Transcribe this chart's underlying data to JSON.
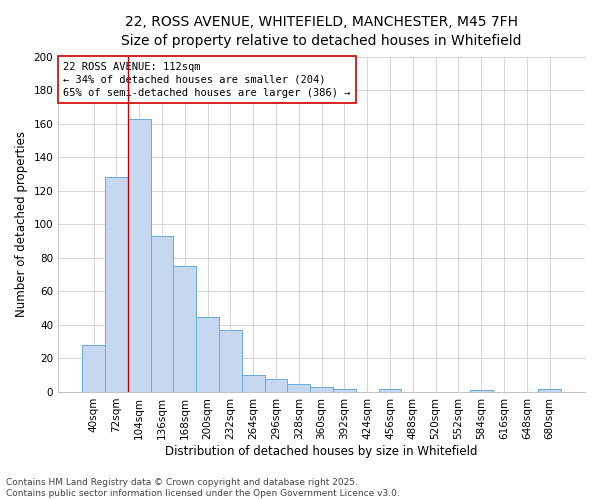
{
  "title_line1": "22, ROSS AVENUE, WHITEFIELD, MANCHESTER, M45 7FH",
  "title_line2": "Size of property relative to detached houses in Whitefield",
  "xlabel": "Distribution of detached houses by size in Whitefield",
  "ylabel": "Number of detached properties",
  "annotation_title": "22 ROSS AVENUE: 112sqm",
  "annotation_line2": "← 34% of detached houses are smaller (204)",
  "annotation_line3": "65% of semi-detached houses are larger (386) →",
  "footer_line1": "Contains HM Land Registry data © Crown copyright and database right 2025.",
  "footer_line2": "Contains public sector information licensed under the Open Government Licence v3.0.",
  "bin_labels": [
    "40sqm",
    "72sqm",
    "104sqm",
    "136sqm",
    "168sqm",
    "200sqm",
    "232sqm",
    "264sqm",
    "296sqm",
    "328sqm",
    "360sqm",
    "392sqm",
    "424sqm",
    "456sqm",
    "488sqm",
    "520sqm",
    "552sqm",
    "584sqm",
    "616sqm",
    "648sqm",
    "680sqm"
  ],
  "bar_values": [
    28,
    128,
    163,
    93,
    75,
    45,
    37,
    10,
    8,
    5,
    3,
    2,
    0,
    2,
    0,
    0,
    0,
    1,
    0,
    0,
    2
  ],
  "bar_color": "#c5d8f0",
  "bar_edge_color": "#6aaad4",
  "vline_color": "#cc0000",
  "annotation_box_color": "#cc0000",
  "ylim": [
    0,
    200
  ],
  "yticks": [
    0,
    20,
    40,
    60,
    80,
    100,
    120,
    140,
    160,
    180,
    200
  ],
  "bg_color": "#ffffff",
  "grid_color": "#d0d0d0",
  "title_fontsize": 10,
  "subtitle_fontsize": 9,
  "axis_label_fontsize": 8.5,
  "tick_fontsize": 7.5,
  "annotation_fontsize": 7.5,
  "footer_fontsize": 6.5
}
